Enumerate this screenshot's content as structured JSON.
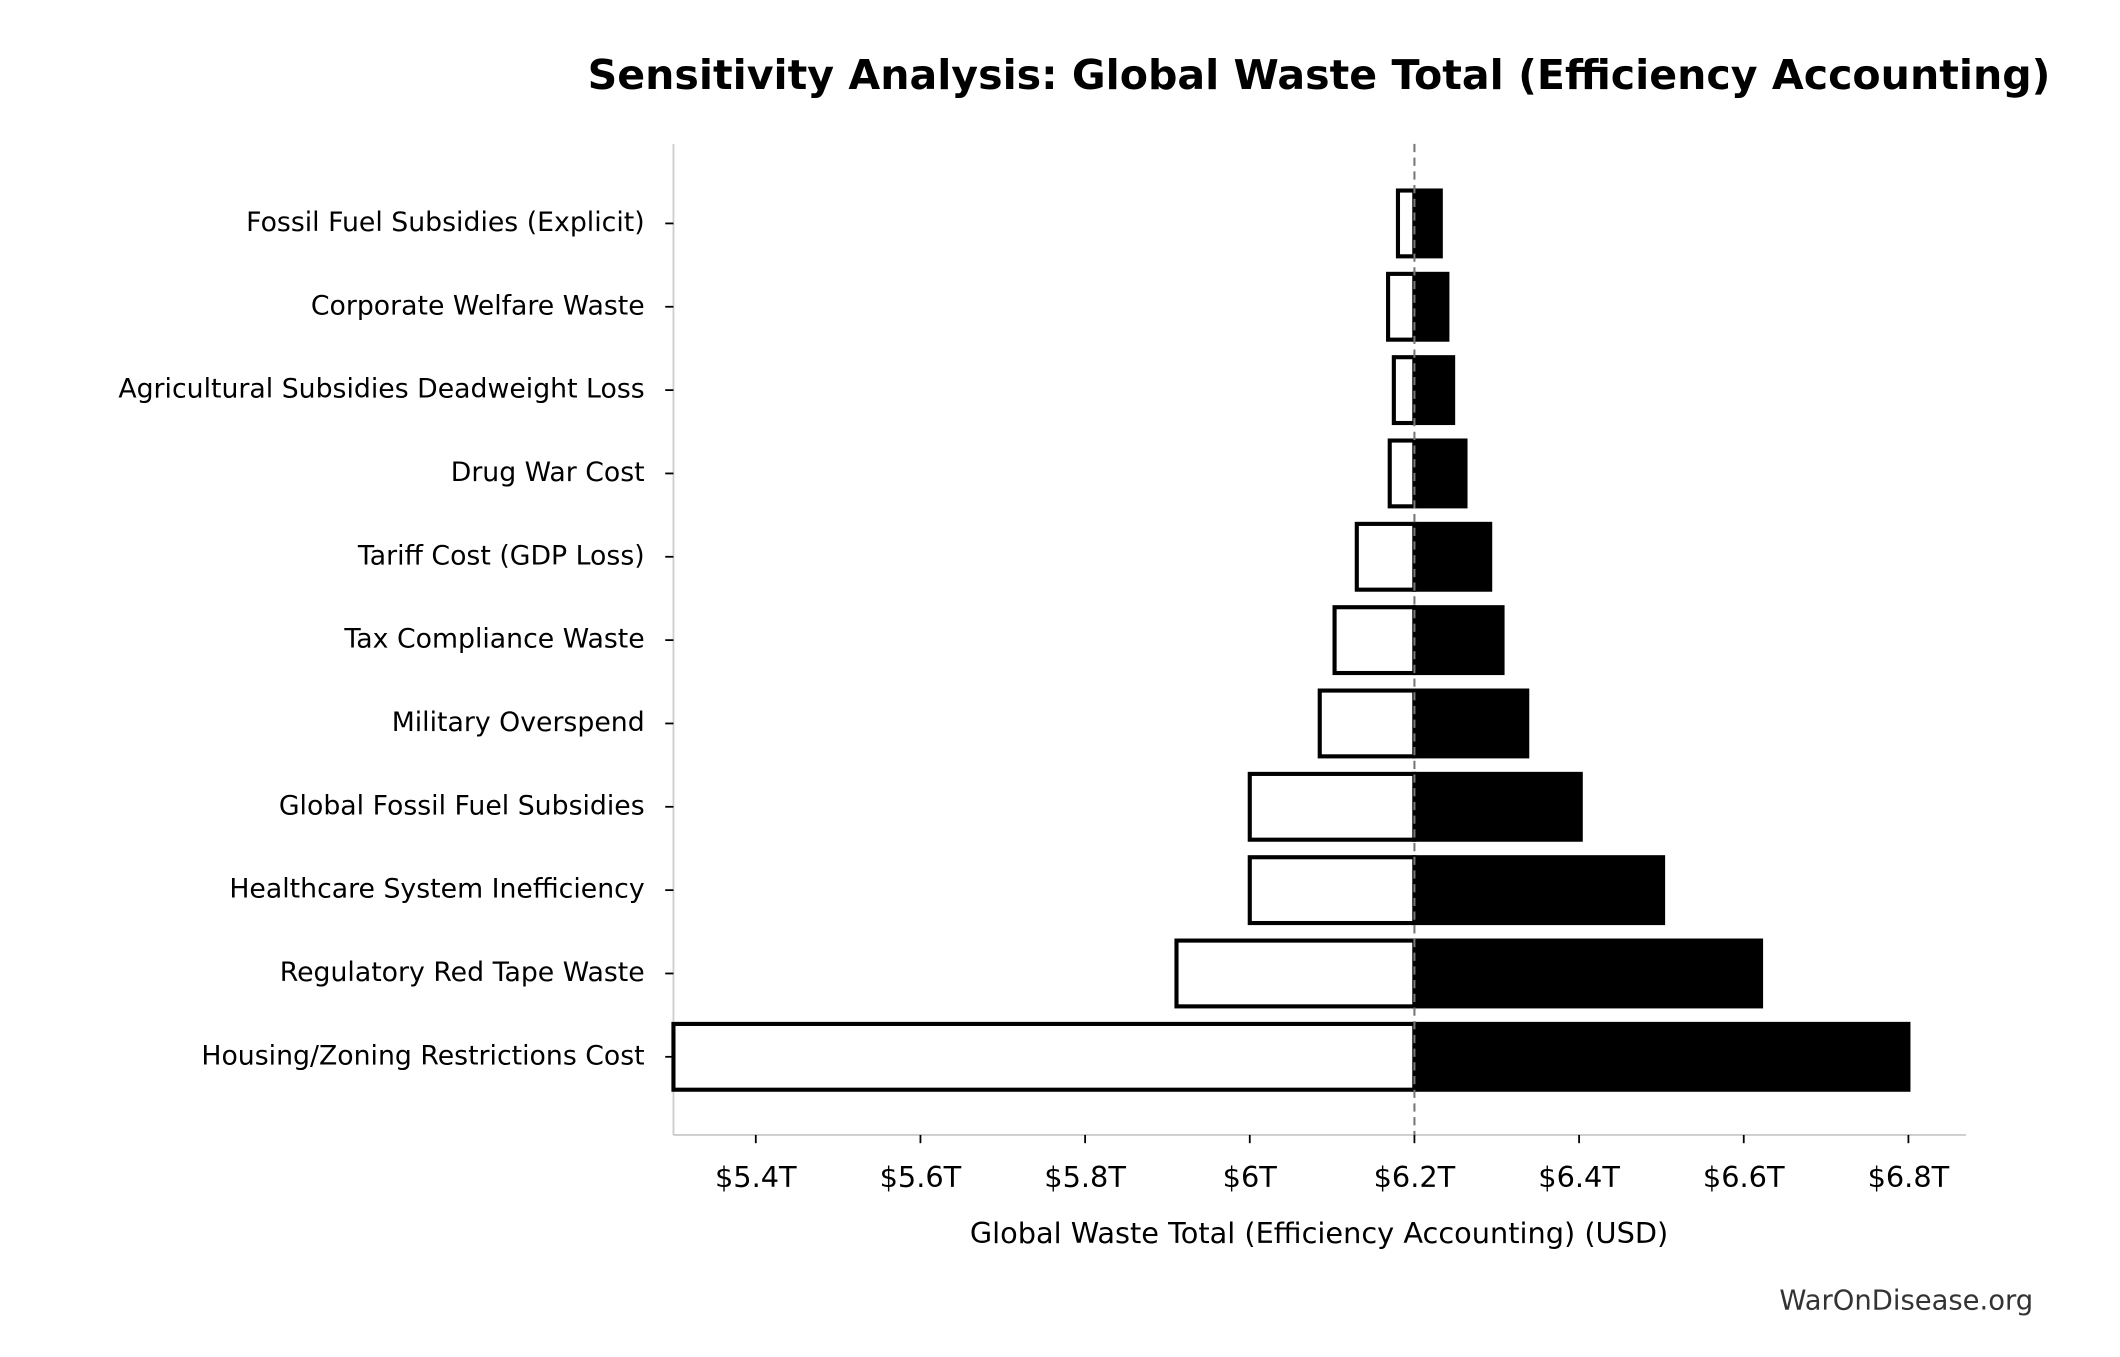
{
  "chart_data": {
    "type": "tornado",
    "title": "Sensitivity Analysis: Global Waste Total (Efficiency Accounting)",
    "xlabel": "Global Waste Total (Efficiency Accounting) (USD)",
    "source": "WarOnDisease.org",
    "categories": [
      "Fossil Fuel Subsidies (Explicit)",
      "Corporate Welfare Waste",
      "Agricultural Subsidies Deadweight Loss",
      "Drug War Cost",
      "Tariff Cost (GDP Loss)",
      "Tax Compliance Waste",
      "Military Overspend",
      "Global Fossil Fuel Subsidies",
      "Healthcare System Inefficiency",
      "Regulatory Red Tape Waste",
      "Housing/Zoning Restrictions Cost"
    ],
    "baseline": 6.2,
    "series": [
      {
        "color": "#ffffff",
        "values": [
          6.18,
          6.168,
          6.175,
          6.17,
          6.13,
          6.103,
          6.085,
          6.0,
          6.0,
          5.911,
          5.3
        ]
      },
      {
        "color": "#000000",
        "values": [
          6.232,
          6.24,
          6.247,
          6.262,
          6.292,
          6.307,
          6.337,
          6.402,
          6.502,
          6.621,
          6.8
        ]
      }
    ],
    "xlim": [
      5.3,
      6.87
    ],
    "xticks": [
      {
        "value": 5.4,
        "label": "$5.4T"
      },
      {
        "value": 5.6,
        "label": "$5.6T"
      },
      {
        "value": 5.8,
        "label": "$5.8T"
      },
      {
        "value": 6,
        "label": "$6T"
      },
      {
        "value": 6.2,
        "label": "$6.2T"
      },
      {
        "value": 6.4,
        "label": "$6.4T"
      },
      {
        "value": 6.6,
        "label": "$6.6T"
      },
      {
        "value": 6.8,
        "label": "$6.8T"
      }
    ]
  }
}
